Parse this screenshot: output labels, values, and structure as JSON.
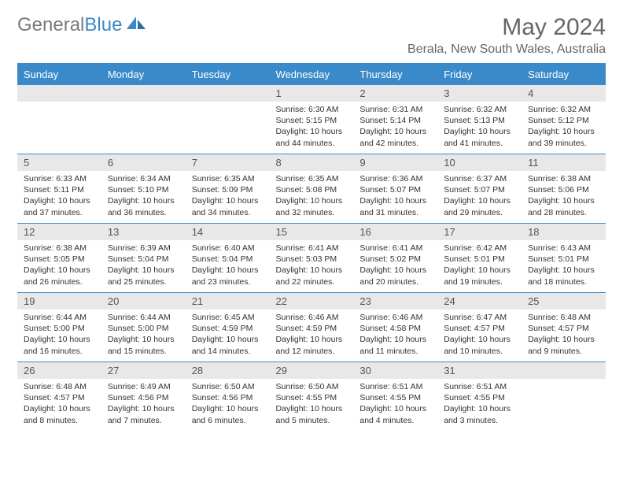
{
  "brand": {
    "name1": "General",
    "name2": "Blue"
  },
  "title": "May 2024",
  "location": "Berala, New South Wales, Australia",
  "colors": {
    "accent": "#3a8ac9",
    "daynum_bg": "#e8e8e8",
    "text": "#333333",
    "header_text": "#666666"
  },
  "dayHeaders": [
    "Sunday",
    "Monday",
    "Tuesday",
    "Wednesday",
    "Thursday",
    "Friday",
    "Saturday"
  ],
  "startOffset": 3,
  "days": [
    {
      "n": 1,
      "sunrise": "6:30 AM",
      "sunset": "5:15 PM",
      "daylight": "10 hours and 44 minutes."
    },
    {
      "n": 2,
      "sunrise": "6:31 AM",
      "sunset": "5:14 PM",
      "daylight": "10 hours and 42 minutes."
    },
    {
      "n": 3,
      "sunrise": "6:32 AM",
      "sunset": "5:13 PM",
      "daylight": "10 hours and 41 minutes."
    },
    {
      "n": 4,
      "sunrise": "6:32 AM",
      "sunset": "5:12 PM",
      "daylight": "10 hours and 39 minutes."
    },
    {
      "n": 5,
      "sunrise": "6:33 AM",
      "sunset": "5:11 PM",
      "daylight": "10 hours and 37 minutes."
    },
    {
      "n": 6,
      "sunrise": "6:34 AM",
      "sunset": "5:10 PM",
      "daylight": "10 hours and 36 minutes."
    },
    {
      "n": 7,
      "sunrise": "6:35 AM",
      "sunset": "5:09 PM",
      "daylight": "10 hours and 34 minutes."
    },
    {
      "n": 8,
      "sunrise": "6:35 AM",
      "sunset": "5:08 PM",
      "daylight": "10 hours and 32 minutes."
    },
    {
      "n": 9,
      "sunrise": "6:36 AM",
      "sunset": "5:07 PM",
      "daylight": "10 hours and 31 minutes."
    },
    {
      "n": 10,
      "sunrise": "6:37 AM",
      "sunset": "5:07 PM",
      "daylight": "10 hours and 29 minutes."
    },
    {
      "n": 11,
      "sunrise": "6:38 AM",
      "sunset": "5:06 PM",
      "daylight": "10 hours and 28 minutes."
    },
    {
      "n": 12,
      "sunrise": "6:38 AM",
      "sunset": "5:05 PM",
      "daylight": "10 hours and 26 minutes."
    },
    {
      "n": 13,
      "sunrise": "6:39 AM",
      "sunset": "5:04 PM",
      "daylight": "10 hours and 25 minutes."
    },
    {
      "n": 14,
      "sunrise": "6:40 AM",
      "sunset": "5:04 PM",
      "daylight": "10 hours and 23 minutes."
    },
    {
      "n": 15,
      "sunrise": "6:41 AM",
      "sunset": "5:03 PM",
      "daylight": "10 hours and 22 minutes."
    },
    {
      "n": 16,
      "sunrise": "6:41 AM",
      "sunset": "5:02 PM",
      "daylight": "10 hours and 20 minutes."
    },
    {
      "n": 17,
      "sunrise": "6:42 AM",
      "sunset": "5:01 PM",
      "daylight": "10 hours and 19 minutes."
    },
    {
      "n": 18,
      "sunrise": "6:43 AM",
      "sunset": "5:01 PM",
      "daylight": "10 hours and 18 minutes."
    },
    {
      "n": 19,
      "sunrise": "6:44 AM",
      "sunset": "5:00 PM",
      "daylight": "10 hours and 16 minutes."
    },
    {
      "n": 20,
      "sunrise": "6:44 AM",
      "sunset": "5:00 PM",
      "daylight": "10 hours and 15 minutes."
    },
    {
      "n": 21,
      "sunrise": "6:45 AM",
      "sunset": "4:59 PM",
      "daylight": "10 hours and 14 minutes."
    },
    {
      "n": 22,
      "sunrise": "6:46 AM",
      "sunset": "4:59 PM",
      "daylight": "10 hours and 12 minutes."
    },
    {
      "n": 23,
      "sunrise": "6:46 AM",
      "sunset": "4:58 PM",
      "daylight": "10 hours and 11 minutes."
    },
    {
      "n": 24,
      "sunrise": "6:47 AM",
      "sunset": "4:57 PM",
      "daylight": "10 hours and 10 minutes."
    },
    {
      "n": 25,
      "sunrise": "6:48 AM",
      "sunset": "4:57 PM",
      "daylight": "10 hours and 9 minutes."
    },
    {
      "n": 26,
      "sunrise": "6:48 AM",
      "sunset": "4:57 PM",
      "daylight": "10 hours and 8 minutes."
    },
    {
      "n": 27,
      "sunrise": "6:49 AM",
      "sunset": "4:56 PM",
      "daylight": "10 hours and 7 minutes."
    },
    {
      "n": 28,
      "sunrise": "6:50 AM",
      "sunset": "4:56 PM",
      "daylight": "10 hours and 6 minutes."
    },
    {
      "n": 29,
      "sunrise": "6:50 AM",
      "sunset": "4:55 PM",
      "daylight": "10 hours and 5 minutes."
    },
    {
      "n": 30,
      "sunrise": "6:51 AM",
      "sunset": "4:55 PM",
      "daylight": "10 hours and 4 minutes."
    },
    {
      "n": 31,
      "sunrise": "6:51 AM",
      "sunset": "4:55 PM",
      "daylight": "10 hours and 3 minutes."
    }
  ],
  "labels": {
    "sunrise": "Sunrise:",
    "sunset": "Sunset:",
    "daylight": "Daylight:"
  }
}
